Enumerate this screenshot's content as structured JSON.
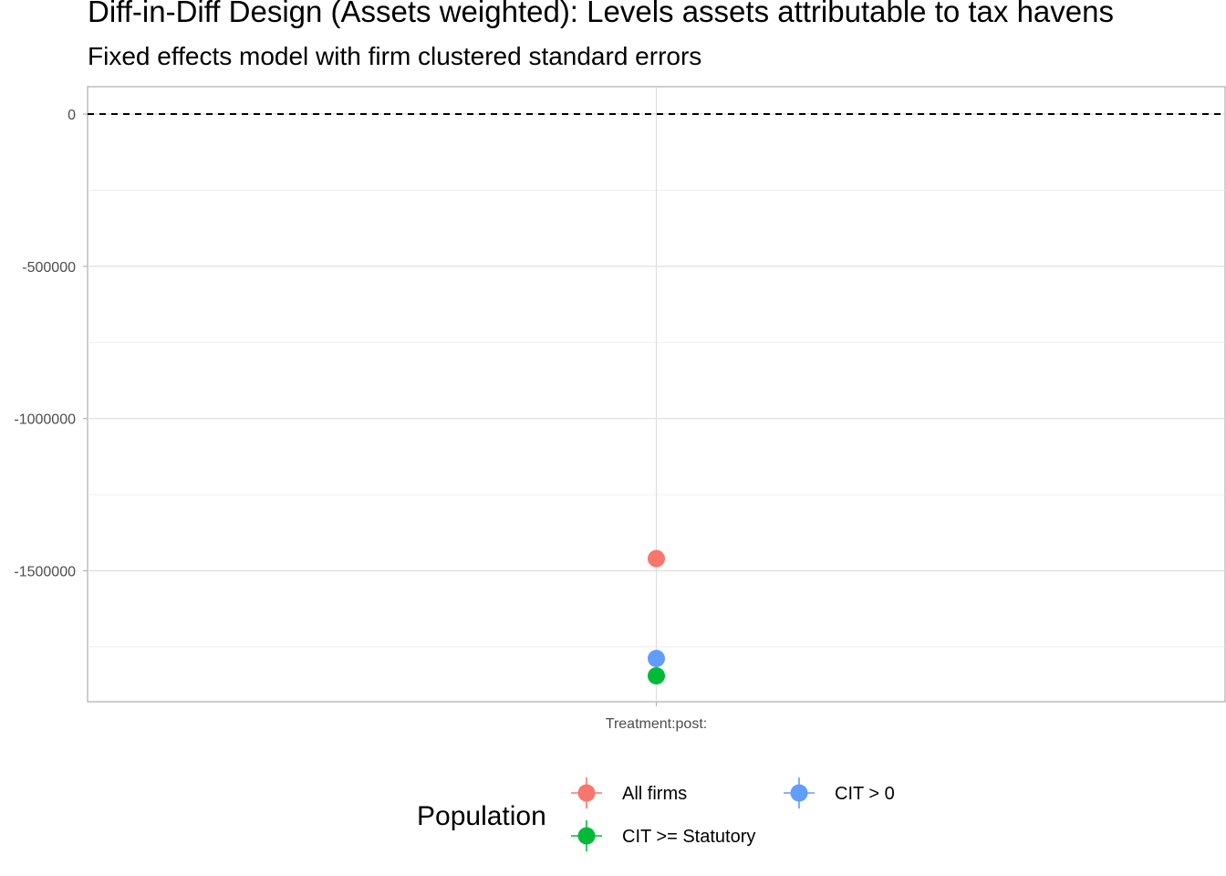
{
  "chart_data": {
    "type": "scatter",
    "title": "Diff-in-Diff Design (Assets weighted): Levels assets attributable to tax havens",
    "subtitle": "Fixed effects model with firm clustered standard errors",
    "xlabel": "",
    "ylabel": "",
    "categories": [
      "Treatment:post:"
    ],
    "ylim": [
      -1930000,
      90000
    ],
    "y_ticks": [
      0,
      -500000,
      -1000000,
      -1500000
    ],
    "y_tick_labels": [
      "0",
      "-500000",
      "-1000000",
      "-1500000"
    ],
    "reference_line": {
      "y": 0,
      "style": "dashed"
    },
    "grid": true,
    "legend": {
      "title": "Population",
      "position": "bottom"
    },
    "series": [
      {
        "name": "All firms",
        "color": "#F8766D",
        "values": [
          -1460000
        ]
      },
      {
        "name": "CIT >= Statutory",
        "color": "#00BA38",
        "values": [
          -1845000
        ]
      },
      {
        "name": "CIT > 0",
        "color": "#619CFF",
        "values": [
          -1788000
        ]
      }
    ]
  }
}
